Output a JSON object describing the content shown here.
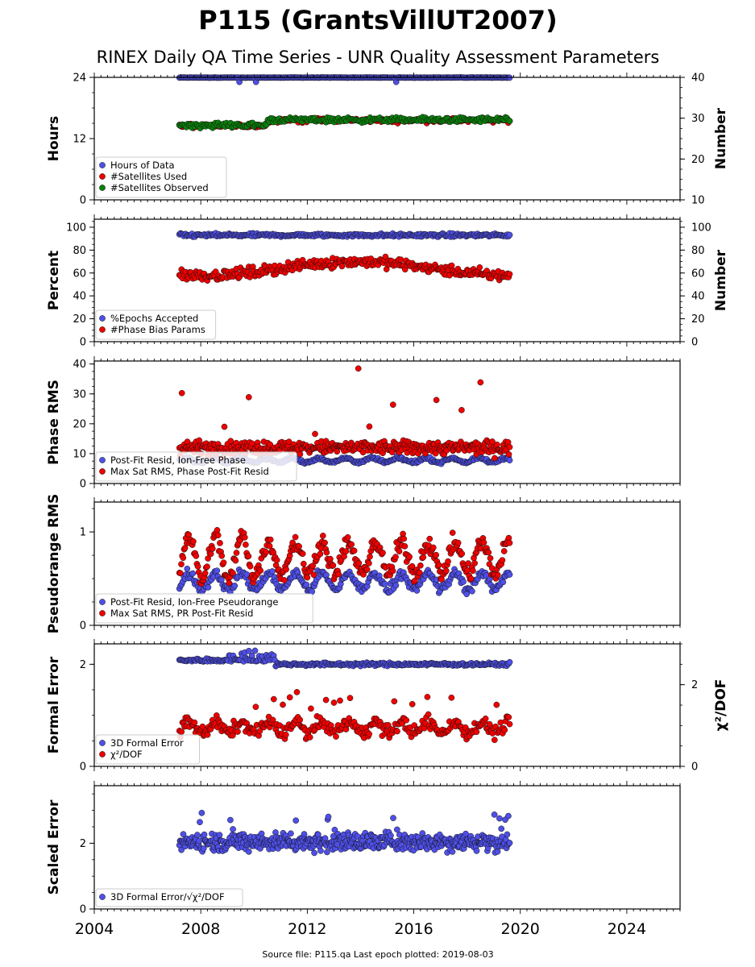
{
  "title": "P115 (GrantsVillUT2007)",
  "subtitle": "RINEX Daily QA Time Series - UNR Quality Assessment Parameters",
  "footer": "Source file: P115.qa Last epoch plotted: 2019-08-03",
  "colors": {
    "blue": "#4f4fe8",
    "red": "#ee0000",
    "green": "#0a800a",
    "edge": "#111111"
  },
  "chart_data": [
    {
      "type": "scatter",
      "ylabel": "Hours",
      "ylabel_right": "Number",
      "xlim": [
        2004,
        2026
      ],
      "ylim": [
        0,
        24
      ],
      "ylim_right": [
        10,
        40
      ],
      "yticks": [
        "0",
        "12",
        "24"
      ],
      "yticks_right": [
        "10",
        "20",
        "30",
        "40"
      ],
      "legend_position": "lower-left",
      "series": [
        {
          "name": "Hours of Data",
          "color": "blue",
          "axis": "left",
          "x_range": [
            2007.2,
            2019.6
          ],
          "y_typical": 23.9
        },
        {
          "name": "#Satellites Used",
          "color": "red",
          "axis": "right",
          "x_range": [
            2007.2,
            2019.6
          ],
          "y_typical": 29.5
        },
        {
          "name": "#Satellites Observed",
          "color": "green",
          "axis": "right",
          "x_range": [
            2007.2,
            2019.6
          ],
          "y_typical": 29.5
        }
      ]
    },
    {
      "type": "scatter",
      "ylabel": "Percent",
      "ylabel_right": "Number",
      "xlim": [
        2004,
        2026
      ],
      "ylim": [
        0,
        107
      ],
      "ylim_right": [
        0,
        107
      ],
      "yticks": [
        "0",
        "20",
        "40",
        "60",
        "80",
        "100"
      ],
      "yticks_right": [
        "0",
        "20",
        "40",
        "60",
        "80",
        "100"
      ],
      "legend_position": "lower-left",
      "series": [
        {
          "name": "%Epochs Accepted",
          "color": "blue",
          "axis": "left",
          "x_range": [
            2007.2,
            2019.6
          ],
          "y_typical": 93
        },
        {
          "name": "#Phase Bias Params",
          "color": "red",
          "axis": "right",
          "x_range": [
            2007.2,
            2019.6
          ],
          "y_typical": 65
        }
      ]
    },
    {
      "type": "scatter",
      "ylabel": "Phase RMS",
      "xlim": [
        2004,
        2026
      ],
      "ylim": [
        0,
        41
      ],
      "yticks": [
        "0",
        "10",
        "20",
        "30",
        "40"
      ],
      "legend_position": "lower-left",
      "series": [
        {
          "name": "Post-Fit Resid, Ion-Free Phase",
          "color": "blue",
          "x_range": [
            2007.2,
            2019.6
          ],
          "y_typical": 8
        },
        {
          "name": "Max Sat RMS, Phase Post-Fit Resid",
          "color": "red",
          "x_range": [
            2007.2,
            2019.6
          ],
          "y_typical": 12
        }
      ]
    },
    {
      "type": "scatter",
      "ylabel": "Pseudorange RMS",
      "xlim": [
        2004,
        2026
      ],
      "ylim": [
        0,
        1.32
      ],
      "yticks": [
        "0",
        "1"
      ],
      "legend_position": "lower-left",
      "series": [
        {
          "name": "Post-Fit Resid, Ion-Free Pseudorange",
          "color": "blue",
          "x_range": [
            2007.2,
            2019.6
          ],
          "y_typical": 0.5
        },
        {
          "name": "Max Sat RMS, PR Post-Fit Resid",
          "color": "red",
          "x_range": [
            2007.2,
            2019.6
          ],
          "y_typical": 0.7
        }
      ]
    },
    {
      "type": "scatter",
      "ylabel": "Formal Error",
      "ylabel_right": "χ²/DOF",
      "xlim": [
        2004,
        2026
      ],
      "ylim": [
        0,
        2.4
      ],
      "ylim_right": [
        0,
        3.0
      ],
      "yticks": [
        "0",
        "2"
      ],
      "yticks_right": [
        "0",
        "2"
      ],
      "legend_position": "lower-left",
      "series": [
        {
          "name": "3D Formal Error",
          "color": "blue",
          "axis": "left",
          "x_range": [
            2007.2,
            2019.6
          ],
          "y_typical": 2.05
        },
        {
          "name": "χ²/DOF",
          "color": "red",
          "axis": "right",
          "x_range": [
            2007.2,
            2019.6
          ],
          "y_typical": 0.95
        }
      ]
    },
    {
      "type": "scatter",
      "ylabel": "Scaled Error",
      "xlim": [
        2004,
        2026
      ],
      "ylim": [
        0,
        3.75
      ],
      "yticks": [
        "0",
        "2"
      ],
      "legend_position": "lower-left",
      "series": [
        {
          "name": "3D Formal Error/√χ²/DOF",
          "color": "blue",
          "x_range": [
            2007.2,
            2019.6
          ],
          "y_typical": 2.05
        }
      ]
    }
  ],
  "x_ticks": [
    "2004",
    "2008",
    "2012",
    "2016",
    "2020",
    "2024"
  ]
}
